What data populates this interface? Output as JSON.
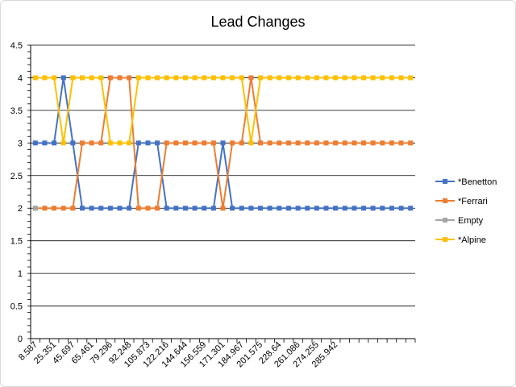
{
  "chart_data": {
    "type": "line",
    "title": "Lead Changes",
    "ylim": [
      0,
      4.5
    ],
    "y_ticks": [
      "0",
      "0.5",
      "1",
      "1.5",
      "2",
      "2.5",
      "3",
      "3.5",
      "4",
      "4.5"
    ],
    "x_tick_labels": [
      "8.587",
      "25.351",
      "45.697",
      "65.461",
      "79.296",
      "92.248",
      "105.873",
      "122.216",
      "144.644",
      "156.559",
      "171.301",
      "184.967",
      "201.575",
      "228.64",
      "261.086",
      "274.255",
      "285.942"
    ],
    "x_tick_label_every": 2,
    "n_points": 41,
    "legend_position": "right",
    "grid": true,
    "series": [
      {
        "name": "*Benetton",
        "color": "#4472C4",
        "values": [
          3,
          3,
          3,
          4,
          3,
          2,
          2,
          2,
          2,
          2,
          2,
          3,
          3,
          3,
          2,
          2,
          2,
          2,
          2,
          2,
          3,
          2,
          2,
          2,
          2,
          2,
          2,
          2,
          2,
          2,
          2,
          2,
          2,
          2,
          2,
          2,
          2,
          2,
          2,
          2,
          2
        ]
      },
      {
        "name": "*Ferrari",
        "color": "#ED7D31",
        "values": [
          2,
          2,
          2,
          2,
          2,
          3,
          3,
          3,
          4,
          4,
          4,
          2,
          2,
          2,
          3,
          3,
          3,
          3,
          3,
          3,
          2,
          3,
          3,
          4,
          3,
          3,
          3,
          3,
          3,
          3,
          3,
          3,
          3,
          3,
          3,
          3,
          3,
          3,
          3,
          3,
          3
        ]
      },
      {
        "name": "Empty",
        "color": "#A5A5A5",
        "values": [
          2
        ]
      },
      {
        "name": "*Alpine",
        "color": "#FFC000",
        "values": [
          4,
          4,
          4,
          3,
          4,
          4,
          4,
          4,
          3,
          3,
          3,
          4,
          4,
          4,
          4,
          4,
          4,
          4,
          4,
          4,
          4,
          4,
          4,
          3,
          4,
          4,
          4,
          4,
          4,
          4,
          4,
          4,
          4,
          4,
          4,
          4,
          4,
          4,
          4,
          4,
          4
        ]
      }
    ]
  }
}
